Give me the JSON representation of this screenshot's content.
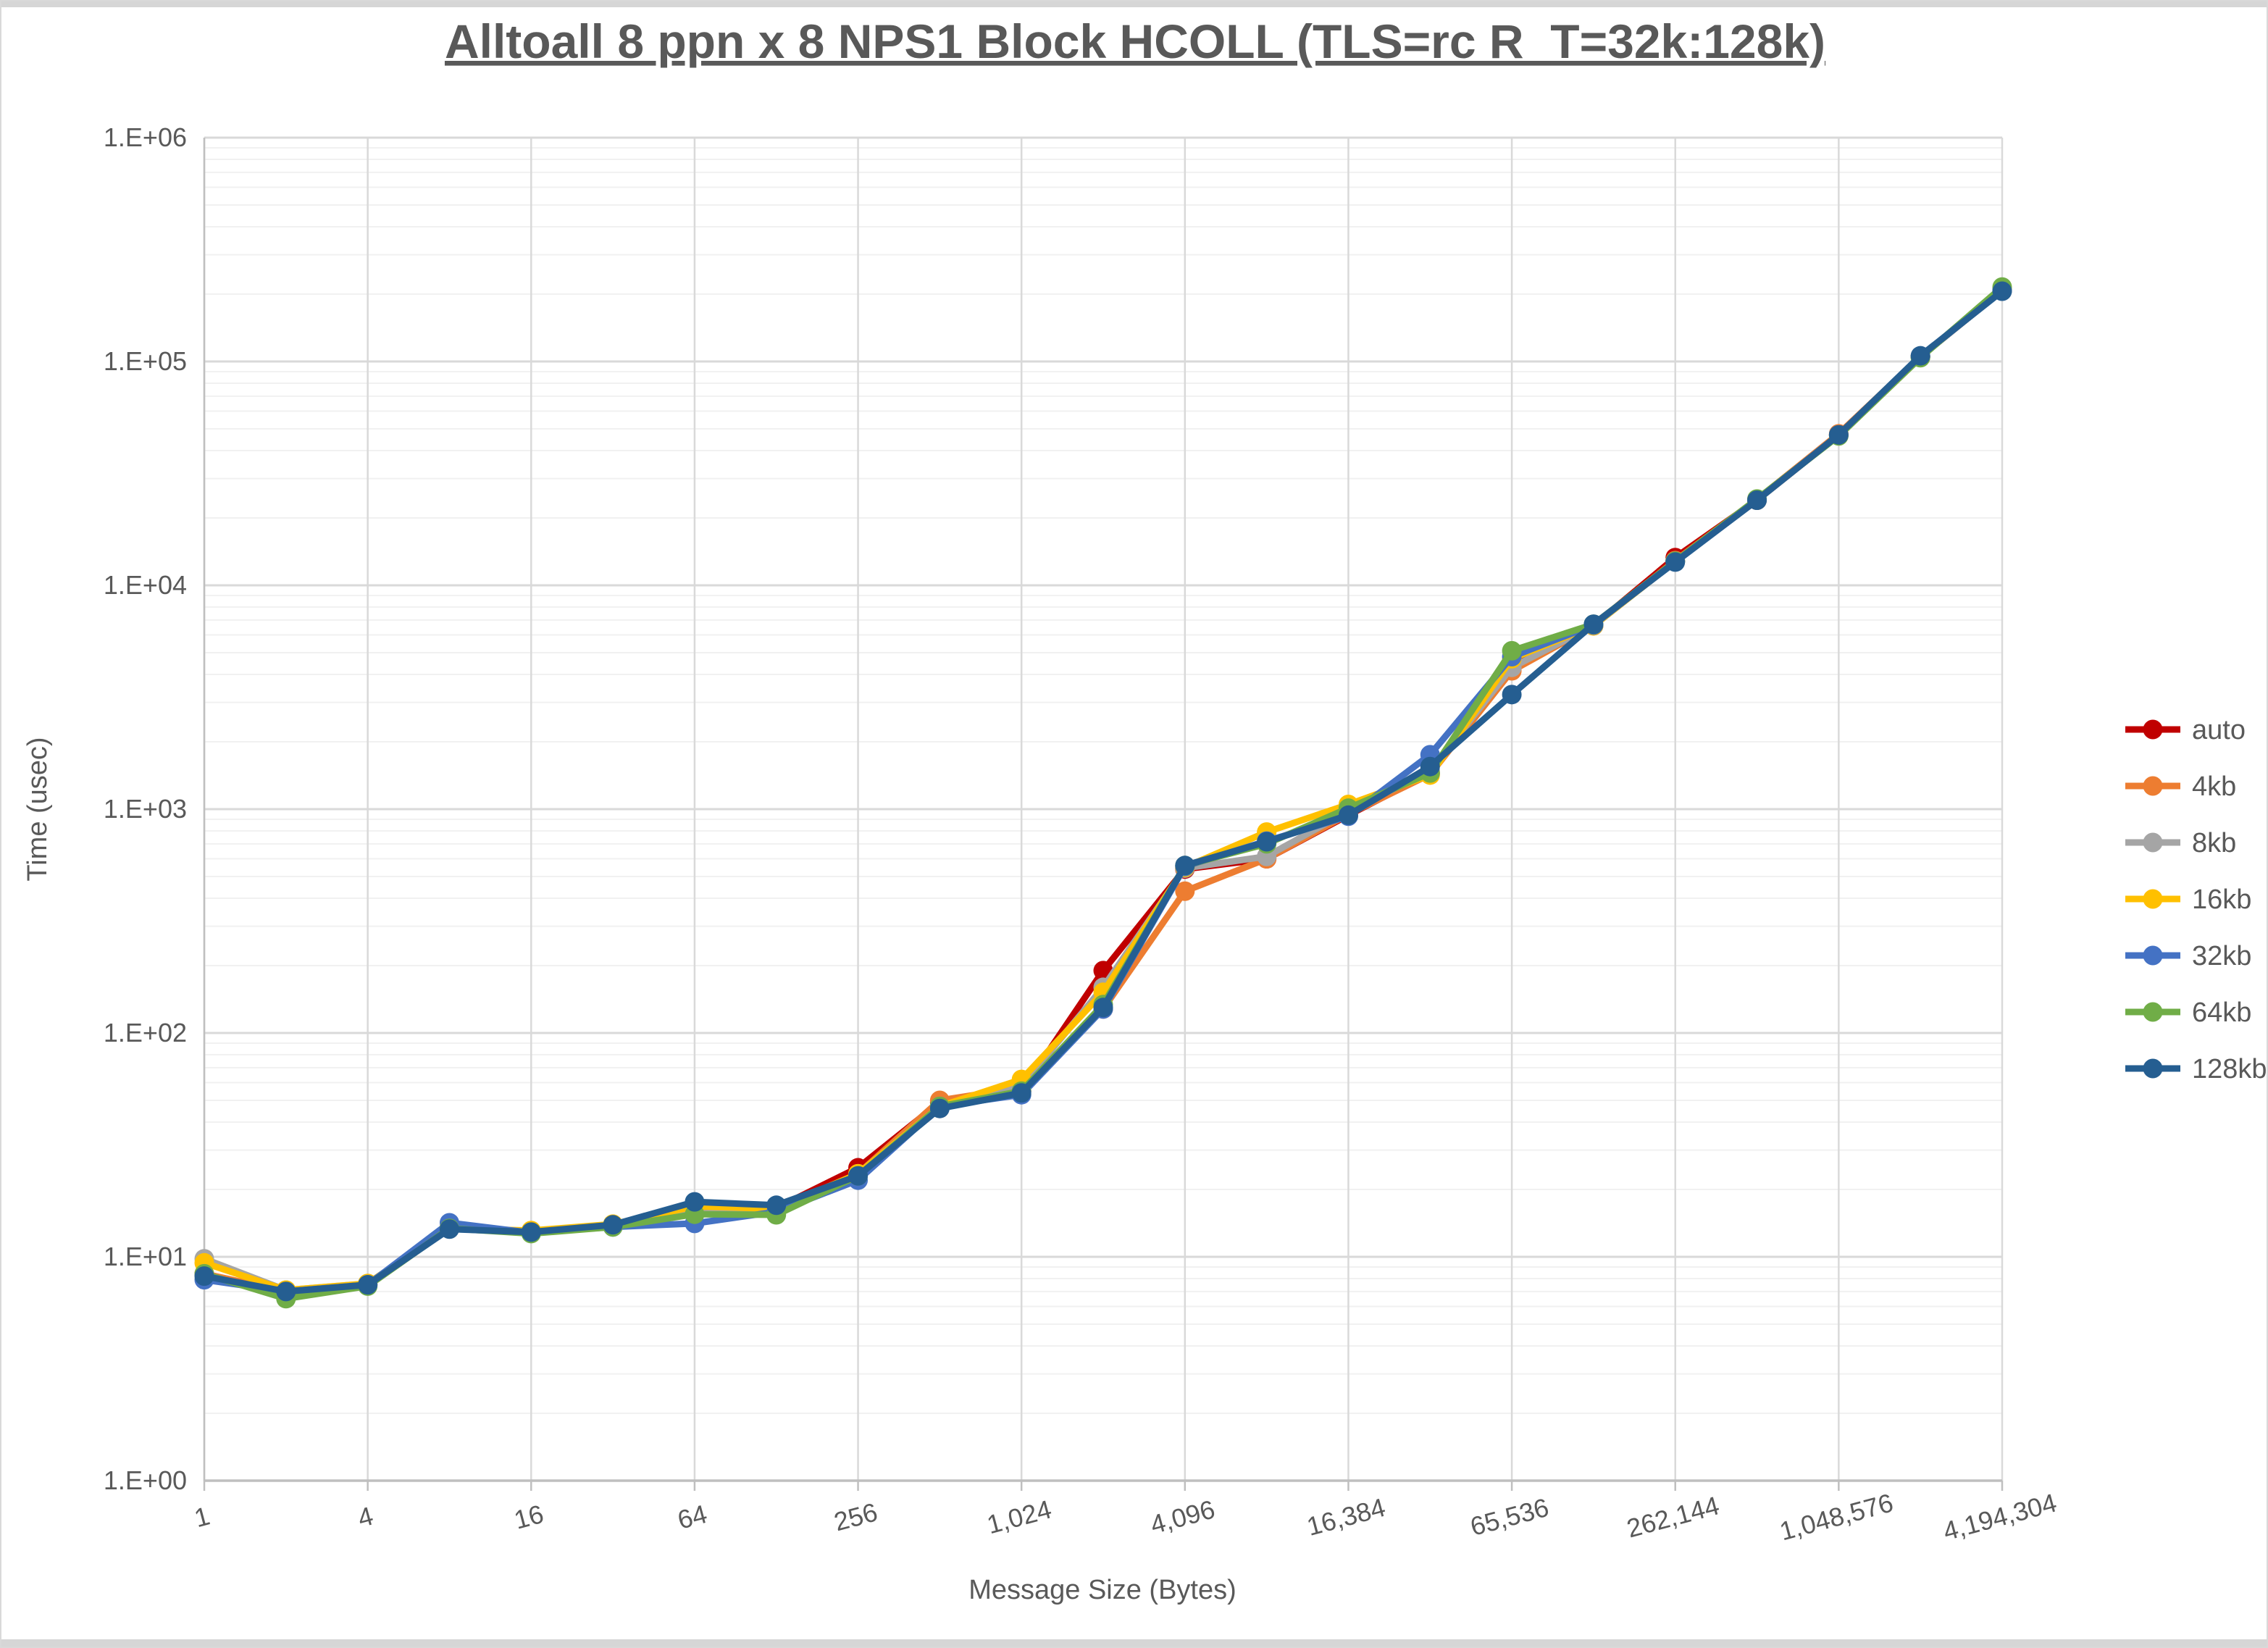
{
  "window": {
    "top_strip_color": "#d6d6d6",
    "bottom_strip_color": "#d6d6d6",
    "text_color": "#595959",
    "major_grid_color": "#d9d9d9",
    "minor_grid_color": "#f1f1f1",
    "axis_line_color": "#bfbfbf"
  },
  "chart_data": {
    "type": "line",
    "title": "Alltoall 8 ppn x 8 NPS1 Block HCOLL (TLS=rc R_T=32k:128k)",
    "xlabel": "Message Size (Bytes)",
    "ylabel": "Time (usec)",
    "x_scale": "log2-categories",
    "y_scale": "log10",
    "ylim": [
      1,
      1000000
    ],
    "grid": {
      "major": true,
      "minor_log": true
    },
    "legend_position": "right",
    "y_tick_labels": [
      "1.E+00",
      "1.E+01",
      "1.E+02",
      "1.E+03",
      "1.E+04",
      "1.E+05",
      "1.E+06"
    ],
    "x_tick_labels": [
      "1",
      "4",
      "16",
      "64",
      "256",
      "1,024",
      "4,096",
      "16,384",
      "65,536",
      "262,144",
      "1,048,576",
      "4,194,304"
    ],
    "categories": [
      1,
      2,
      4,
      8,
      16,
      32,
      64,
      128,
      256,
      512,
      1024,
      2048,
      4096,
      8192,
      16384,
      32768,
      65536,
      131072,
      262144,
      524288,
      1048576,
      2097152,
      4194304
    ],
    "series": [
      {
        "name": "auto",
        "color": "#C00000",
        "values": [
          8.4,
          6.9,
          7.5,
          13.5,
          13.0,
          13.8,
          16.3,
          16.5,
          25,
          49,
          55,
          190,
          540,
          600,
          940,
          1450,
          4500,
          6600,
          13300,
          24000,
          47000,
          105000,
          208000
        ]
      },
      {
        "name": "4kb",
        "color": "#ED7D31",
        "values": [
          8.4,
          7.0,
          7.5,
          13.5,
          13.0,
          13.8,
          16.0,
          16.2,
          23.5,
          50,
          57,
          128,
          430,
          600,
          950,
          1430,
          4150,
          6600,
          12900,
          24200,
          47500,
          105000,
          208000
        ]
      },
      {
        "name": "8kb",
        "color": "#A5A5A5",
        "values": [
          9.8,
          7.1,
          7.6,
          13.4,
          13.0,
          13.8,
          15.6,
          16.1,
          23.5,
          47,
          58,
          160,
          545,
          615,
          980,
          1480,
          4300,
          6600,
          12800,
          24000,
          47000,
          105000,
          208000
        ]
      },
      {
        "name": "16kb",
        "color": "#FFC000",
        "values": [
          9.4,
          7.1,
          7.6,
          13.4,
          13.1,
          14.0,
          16.8,
          16.4,
          23.5,
          47,
          62,
          152,
          550,
          790,
          1050,
          1420,
          4700,
          6600,
          12800,
          24000,
          47000,
          105000,
          208000
        ]
      },
      {
        "name": "32kb",
        "color": "#4472C4",
        "values": [
          7.9,
          7.0,
          7.5,
          14.2,
          12.8,
          13.6,
          14.1,
          15.9,
          22,
          47,
          53,
          128,
          555,
          720,
          930,
          1750,
          4800,
          6650,
          12800,
          24000,
          47000,
          105000,
          208000
        ]
      },
      {
        "name": "64kb",
        "color": "#70AD47",
        "values": [
          8.4,
          6.5,
          7.4,
          13.4,
          12.7,
          13.6,
          15.5,
          15.4,
          23,
          47,
          55,
          134,
          560,
          700,
          1010,
          1450,
          5100,
          6700,
          12800,
          24300,
          46500,
          104000,
          215000
        ]
      },
      {
        "name": "128kb",
        "color": "#255E91",
        "values": [
          8.2,
          7.0,
          7.5,
          13.3,
          12.9,
          13.9,
          17.6,
          17.0,
          23,
          46,
          54,
          130,
          560,
          715,
          940,
          1550,
          3250,
          6700,
          12700,
          24000,
          47000,
          106000,
          206000
        ]
      }
    ]
  }
}
